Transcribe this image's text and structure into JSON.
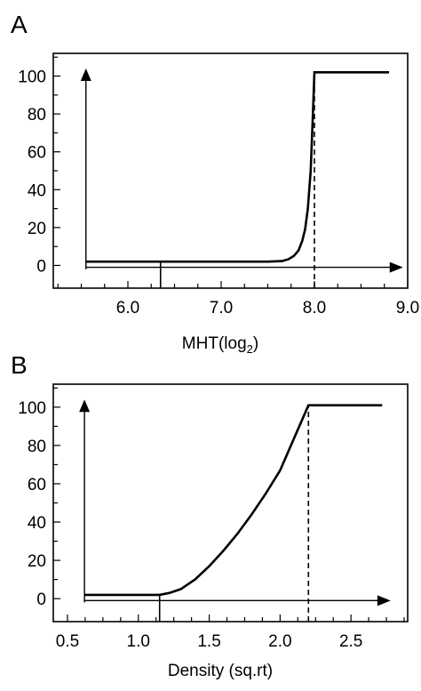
{
  "chart_data": [
    {
      "type": "line",
      "panel": "A",
      "xlabel": "MHT(log",
      "xlabel_sub": "2",
      "xlabel_end": ")",
      "xlim": [
        5.2,
        9.0
      ],
      "ylim": [
        -12,
        112
      ],
      "xticks": [
        6.0,
        7.0,
        8.0,
        9.0
      ],
      "xtick_labels": [
        "6.0",
        "7.0",
        "8.0",
        "9.0"
      ],
      "yticks": [
        0,
        20,
        40,
        60,
        80,
        100
      ],
      "ytick_labels": [
        "0",
        "20",
        "40",
        "60",
        "80",
        "100"
      ],
      "series": [
        {
          "x": [
            5.55,
            5.8,
            6.0,
            6.3,
            6.6,
            6.9,
            7.2,
            7.5,
            7.65,
            7.72,
            7.78,
            7.83,
            7.87,
            7.9,
            7.93,
            7.96,
            7.98,
            8.0,
            8.3,
            8.6,
            8.8
          ],
          "y": [
            2,
            2,
            2,
            2,
            2,
            2,
            2,
            2,
            2.3,
            3.2,
            5,
            8,
            13,
            19,
            30,
            50,
            75,
            102,
            102,
            102,
            102
          ]
        }
      ],
      "y_axis_arrow": {
        "x": 5.55,
        "y_from": -2,
        "y_to": 104
      },
      "x_axis_arrow": {
        "y": -1,
        "x_from": 5.55,
        "x_to": 8.95
      },
      "vertical_marker": {
        "x": 6.35,
        "y_from": -12,
        "y_to": 2
      },
      "dashed_line": {
        "x": 8.0,
        "y_from": -12,
        "y_to": 102
      },
      "grid": false,
      "legend": "none"
    },
    {
      "type": "line",
      "panel": "B",
      "xlabel": "Density (sq.rt)",
      "xlim": [
        0.4,
        2.9
      ],
      "ylim": [
        -12,
        112
      ],
      "xticks": [
        0.5,
        1.0,
        1.5,
        2.0,
        2.5
      ],
      "xtick_labels": [
        "0.5",
        "1.0",
        "1.5",
        "2.0",
        "2.5"
      ],
      "yticks": [
        0,
        20,
        40,
        60,
        80,
        100
      ],
      "ytick_labels": [
        "0",
        "20",
        "40",
        "60",
        "80",
        "100"
      ],
      "series": [
        {
          "x": [
            0.62,
            0.8,
            1.0,
            1.15,
            1.22,
            1.3,
            1.4,
            1.5,
            1.6,
            1.7,
            1.8,
            1.9,
            2.0,
            2.1,
            2.2,
            2.4,
            2.6,
            2.72
          ],
          "y": [
            2,
            2,
            2,
            2,
            3,
            5,
            10,
            17,
            25,
            34,
            44,
            55,
            67,
            84,
            101,
            101,
            101,
            101
          ]
        }
      ],
      "y_axis_arrow": {
        "x": 0.62,
        "y_from": -2,
        "y_to": 104
      },
      "x_axis_arrow": {
        "y": -1,
        "x_from": 0.62,
        "x_to": 2.78
      },
      "vertical_marker": {
        "x": 1.15,
        "y_from": -12,
        "y_to": 2
      },
      "dashed_line": {
        "x": 2.2,
        "y_from": -12,
        "y_to": 101
      },
      "grid": false,
      "legend": "none"
    }
  ]
}
